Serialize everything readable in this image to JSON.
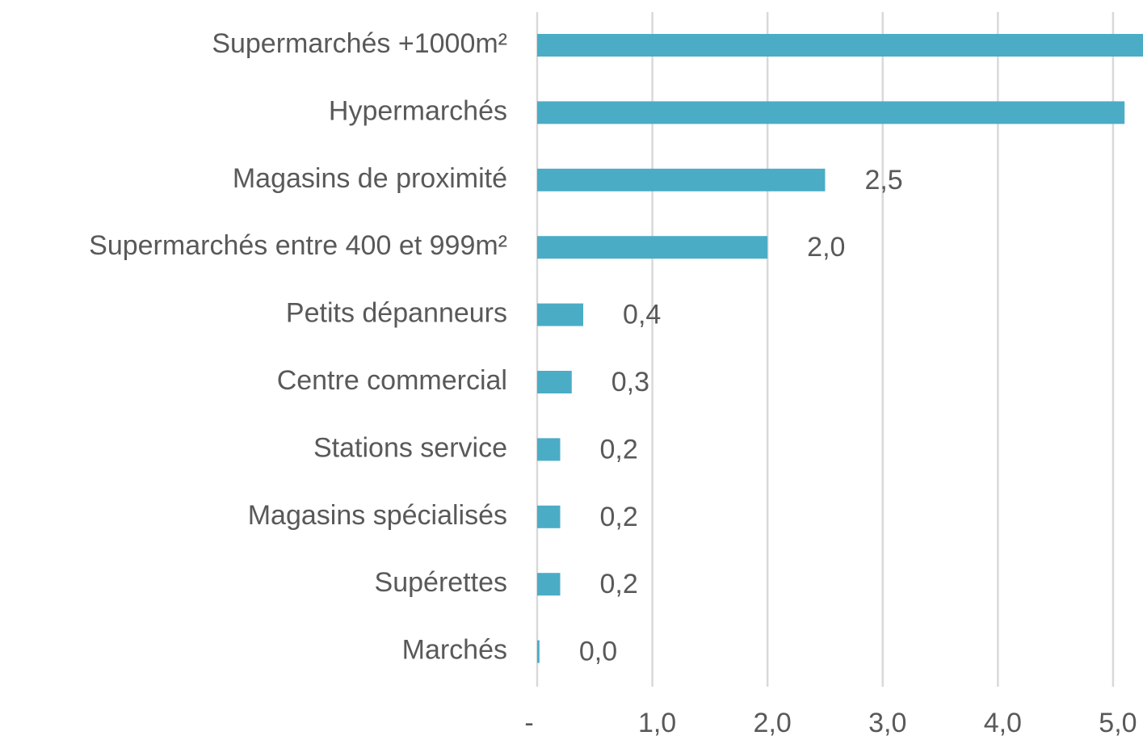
{
  "chart_data": {
    "type": "barh",
    "categories": [
      "Supermarchés +1000m²",
      "Hypermarchés",
      "Magasins de proximité",
      "Supermarchés entre 400 et 999m²",
      "Petits dépanneurs",
      "Centre commercial",
      "Stations service",
      "Magasins spécialisés",
      "Supérettes",
      "Marchés"
    ],
    "values": [
      5.5,
      5.1,
      2.5,
      2.0,
      0.4,
      0.3,
      0.2,
      0.2,
      0.2,
      0.02
    ],
    "value_labels": [
      null,
      null,
      "2,5",
      "2,0",
      "0,4",
      "0,3",
      "0,2",
      "0,2",
      "0,2",
      "0,0"
    ],
    "color": "#4bacc6",
    "xlim": [
      0,
      5.26
    ],
    "xticks": [
      {
        "value": 0,
        "label": "-"
      },
      {
        "value": 1,
        "label": "1,0"
      },
      {
        "value": 2,
        "label": "2,0"
      },
      {
        "value": 3,
        "label": "3,0"
      },
      {
        "value": 4,
        "label": "4,0"
      },
      {
        "value": 5,
        "label": "5,0"
      }
    ],
    "grid": true
  }
}
